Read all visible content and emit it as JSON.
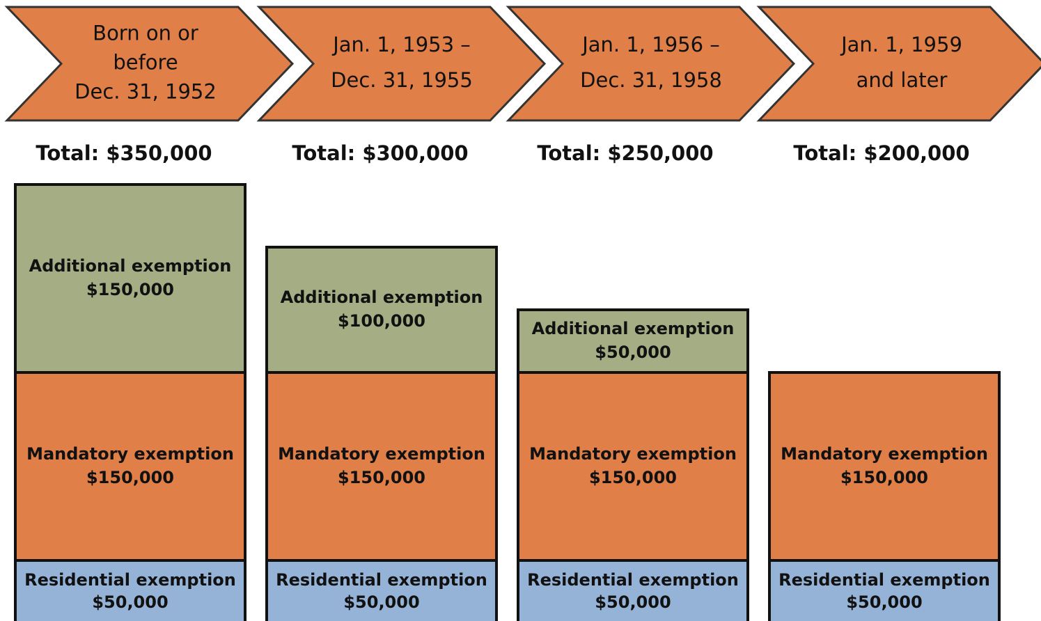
{
  "chart_data": {
    "type": "bar",
    "stacked": true,
    "headers": [
      [
        "Born on or",
        "before",
        "Dec. 31, 1952"
      ],
      [
        "Jan. 1, 1953 –",
        "Dec. 31, 1955"
      ],
      [
        "Jan. 1, 1956 –",
        "Dec. 31, 1958"
      ],
      [
        "Jan. 1, 1959",
        "and later"
      ]
    ],
    "header_color": "#e07f47",
    "total_labels": [
      "Total: $350,000",
      "Total: $300,000",
      "Total: $250,000",
      "Total: $200,000"
    ],
    "series": [
      {
        "name": "Residential exemption",
        "color": "#95b3d7",
        "values": [
          50000,
          50000,
          50000,
          50000
        ],
        "value_labels": [
          "$50,000",
          "$50,000",
          "$50,000",
          "$50,000"
        ]
      },
      {
        "name": "Mandatory exemption",
        "color": "#e07f47",
        "values": [
          150000,
          150000,
          150000,
          150000
        ],
        "value_labels": [
          "$150,000",
          "$150,000",
          "$150,000",
          "$150,000"
        ]
      },
      {
        "name": "Additional exemption",
        "color": "#a4ad83",
        "values": [
          150000,
          100000,
          50000,
          null
        ],
        "value_labels": [
          "$150,000",
          "$100,000",
          "$50,000",
          null
        ]
      }
    ]
  }
}
